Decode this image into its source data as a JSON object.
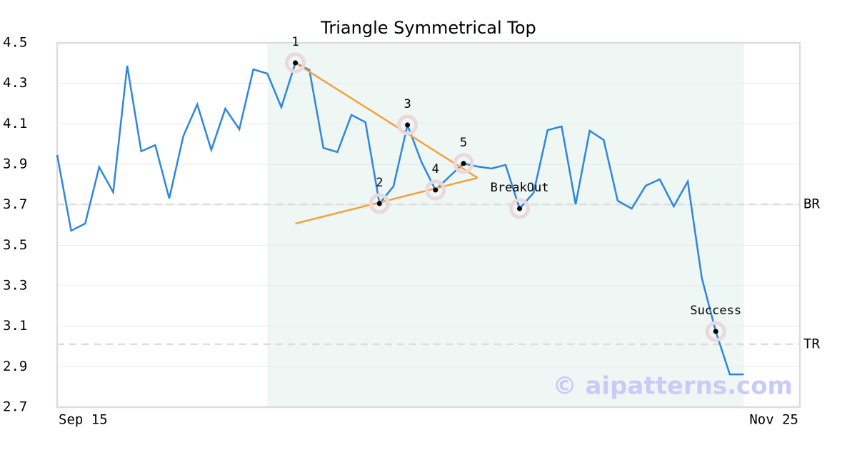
{
  "chart_data": {
    "type": "line",
    "title": "Triangle Symmetrical Top",
    "watermark": "© aipatterns.com",
    "x": [
      0,
      1,
      2,
      3,
      4,
      5,
      6,
      7,
      8,
      9,
      10,
      11,
      12,
      13,
      14,
      15,
      16,
      17,
      18,
      19,
      20,
      21,
      22,
      23,
      24,
      25,
      26,
      27,
      28,
      29,
      30,
      31,
      32,
      33,
      34,
      35,
      36,
      37,
      38,
      39,
      40,
      41,
      42,
      43,
      44,
      45,
      46,
      47,
      48,
      49
    ],
    "series": [
      {
        "color": "#2e86de",
        "values": [
          3.946,
          3.572,
          3.607,
          3.886,
          3.762,
          4.387,
          3.964,
          3.995,
          3.731,
          4.038,
          4.196,
          3.971,
          4.175,
          4.073,
          4.369,
          4.348,
          4.182,
          4.401,
          4.366,
          3.981,
          3.96,
          4.144,
          4.108,
          3.706,
          3.791,
          4.094,
          3.911,
          3.773,
          3.84,
          3.904,
          3.889,
          3.879,
          3.897,
          3.681,
          3.759,
          4.069,
          4.087,
          3.702,
          4.066,
          4.02,
          3.72,
          3.681,
          3.794,
          3.826,
          3.692,
          3.815,
          3.339,
          3.074,
          2.862,
          2.862
        ]
      }
    ],
    "xlim": [
      0,
      53
    ],
    "xticks": [
      {
        "value": 0,
        "label": "Sep 15"
      },
      {
        "value": 53,
        "label": "Nov 25"
      }
    ],
    "ylim": [
      2.7,
      4.5
    ],
    "yticks": [
      2.7,
      2.9,
      3.1,
      3.3,
      3.5,
      3.7,
      3.9,
      4.1,
      4.3,
      4.5
    ],
    "grid": true,
    "shade": {
      "x": [
        15,
        49
      ],
      "color": "#eef7f3"
    },
    "pattern_lines": [
      {
        "color": "#f5a142",
        "x": [
          17,
          30
        ],
        "y": [
          4.401,
          3.833
        ]
      },
      {
        "color": "#f5a142",
        "x": [
          17,
          30
        ],
        "y": [
          3.607,
          3.833
        ]
      }
    ],
    "hlines": [
      {
        "label": "BR",
        "value": 3.702
      },
      {
        "label": "TR",
        "value": 3.011
      }
    ],
    "points": [
      {
        "label": "1",
        "x": 17,
        "y": 4.401
      },
      {
        "label": "2",
        "x": 23,
        "y": 3.706
      },
      {
        "label": "3",
        "x": 25,
        "y": 4.094
      },
      {
        "label": "4",
        "x": 27,
        "y": 3.773
      },
      {
        "label": "5",
        "x": 29,
        "y": 3.904
      },
      {
        "label": "BreakOut",
        "x": 33,
        "y": 3.681
      },
      {
        "label": "Success",
        "x": 47,
        "y": 3.074
      }
    ]
  }
}
